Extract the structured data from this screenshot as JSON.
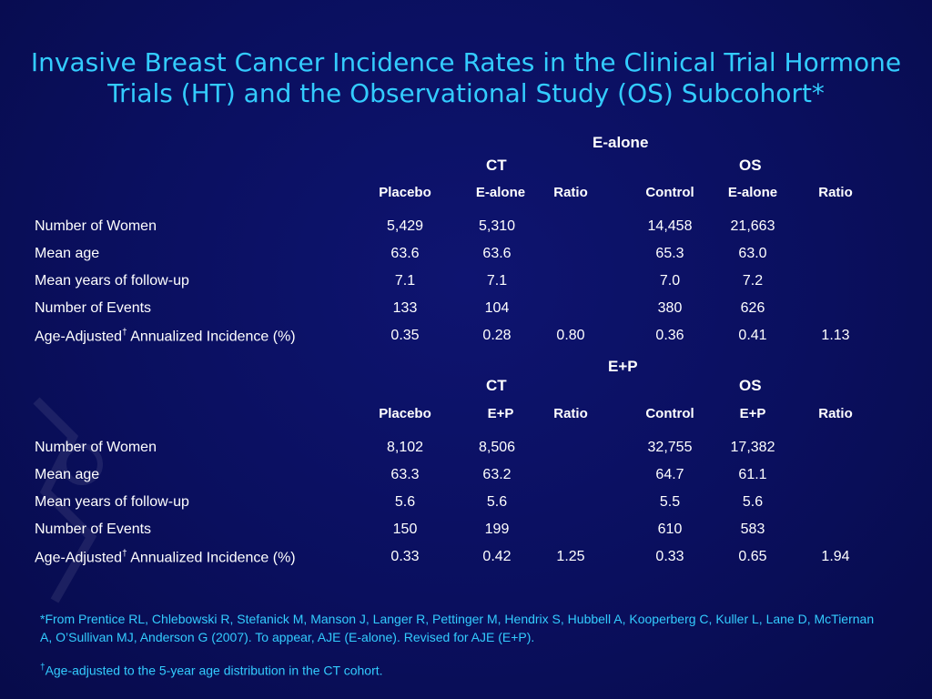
{
  "title": {
    "line1": "Invasive Breast Cancer Incidence Rates in the Clinical Trial Hormone",
    "line2": "Trials (HT) and the Observational Study (OS) Subcohort*"
  },
  "columns": {
    "placebo": "Placebo",
    "ratio": "Ratio",
    "control": "Control",
    "ct": "CT",
    "os": "OS"
  },
  "ealone": {
    "header": "E-alone",
    "treat_label": "E-alone",
    "rows": [
      {
        "label": "Number of Women",
        "cells": [
          "5,429",
          "5,310",
          "",
          "14,458",
          "21,663",
          ""
        ]
      },
      {
        "label": "Mean age",
        "cells": [
          "63.6",
          "63.6",
          "",
          "65.3",
          "63.0",
          ""
        ]
      },
      {
        "label": "Mean years of follow-up",
        "cells": [
          "7.1",
          "7.1",
          "",
          "7.0",
          "7.2",
          ""
        ]
      },
      {
        "label": "Number of Events",
        "cells": [
          "133",
          "104",
          "",
          "380",
          "626",
          ""
        ]
      },
      {
        "label_pre": "Age-Adjusted",
        "label_sup": "†",
        "label_post": " Annualized Incidence (%)",
        "cells": [
          "0.35",
          "0.28",
          "0.80",
          "0.36",
          "0.41",
          "1.13"
        ]
      }
    ]
  },
  "ep": {
    "header": "E+P",
    "treat_label": "E+P",
    "rows": [
      {
        "label": "Number of Women",
        "cells": [
          "8,102",
          "8,506",
          "",
          "32,755",
          "17,382",
          ""
        ]
      },
      {
        "label": "Mean age",
        "cells": [
          "63.3",
          "63.2",
          "",
          "64.7",
          "61.1",
          ""
        ]
      },
      {
        "label": "Mean years of follow-up",
        "cells": [
          "5.6",
          "5.6",
          "",
          "5.5",
          "5.6",
          ""
        ]
      },
      {
        "label": "Number of Events",
        "cells": [
          "150",
          "199",
          "",
          "610",
          "583",
          ""
        ]
      },
      {
        "label_pre": "Age-Adjusted",
        "label_sup": "†",
        "label_post": " Annualized Incidence (%)",
        "cells": [
          "0.33",
          "0.42",
          "1.25",
          "0.33",
          "0.65",
          "1.94"
        ]
      }
    ]
  },
  "footnotes": {
    "ref": "*From Prentice RL, Chlebowski R, Stefanick M, Manson J, Langer R, Pettinger M, Hendrix S, Hubbell A, Kooperberg C, Kuller L, Lane D, McTiernan A, O’Sullivan MJ, Anderson G (2007).  To appear, AJE (E-alone). Revised for AJE (E+P).",
    "dagger_sym": "†",
    "dagger": "Age-adjusted to the 5-year age distribution in the CT cohort."
  }
}
